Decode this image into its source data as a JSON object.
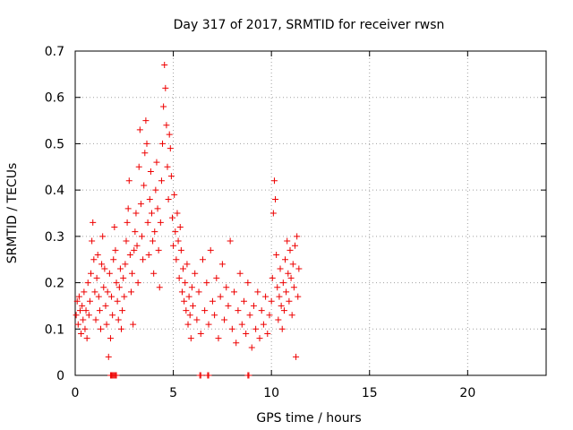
{
  "chart_data": {
    "type": "scatter",
    "title": "Day 317 of 2017, SRMTID for receiver rwsn",
    "xlabel": "GPS time / hours",
    "ylabel": "SRMTID / TECUs",
    "xlim": [
      0,
      24
    ],
    "ylim": [
      0,
      0.7
    ],
    "x_ticks": [
      0,
      5,
      10,
      15,
      20
    ],
    "y_ticks": [
      0,
      0.1,
      0.2,
      0.3,
      0.4,
      0.5,
      0.6,
      0.7
    ],
    "x_tick_labels": [
      "0",
      "5",
      "10",
      "15",
      "20"
    ],
    "y_tick_labels": [
      "0",
      "0.1",
      "0.2",
      "0.3",
      "0.4",
      "0.5",
      "0.6",
      "0.7"
    ],
    "grid": true,
    "marker": "+",
    "color": "#ee0000",
    "series": [
      {
        "name": "SRMTID",
        "points": [
          [
            0.05,
            0.13
          ],
          [
            0.1,
            0.16
          ],
          [
            0.15,
            0.11
          ],
          [
            0.2,
            0.17
          ],
          [
            0.25,
            0.14
          ],
          [
            0.3,
            0.09
          ],
          [
            0.35,
            0.15
          ],
          [
            0.4,
            0.12
          ],
          [
            0.45,
            0.18
          ],
          [
            0.5,
            0.1
          ],
          [
            0.55,
            0.14
          ],
          [
            0.6,
            0.08
          ],
          [
            0.65,
            0.2
          ],
          [
            0.7,
            0.13
          ],
          [
            0.75,
            0.16
          ],
          [
            0.8,
            0.22
          ],
          [
            0.85,
            0.29
          ],
          [
            0.9,
            0.33
          ],
          [
            0.95,
            0.25
          ],
          [
            1.0,
            0.18
          ],
          [
            1.05,
            0.12
          ],
          [
            1.1,
            0.21
          ],
          [
            1.15,
            0.26
          ],
          [
            1.2,
            0.17
          ],
          [
            1.25,
            0.14
          ],
          [
            1.3,
            0.1
          ],
          [
            1.35,
            0.24
          ],
          [
            1.4,
            0.3
          ],
          [
            1.45,
            0.19
          ],
          [
            1.5,
            0.23
          ],
          [
            1.55,
            0.15
          ],
          [
            1.6,
            0.11
          ],
          [
            1.65,
            0.18
          ],
          [
            1.7,
            0.04
          ],
          [
            1.75,
            0.22
          ],
          [
            1.8,
            0.08
          ],
          [
            1.85,
            0.17
          ],
          [
            1.9,
            0.13
          ],
          [
            1.95,
            0.25
          ],
          [
            2.0,
            0.32
          ],
          [
            2.05,
            0.27
          ],
          [
            2.1,
            0.2
          ],
          [
            2.15,
            0.16
          ],
          [
            2.2,
            0.12
          ],
          [
            2.25,
            0.19
          ],
          [
            2.3,
            0.23
          ],
          [
            2.35,
            0.1
          ],
          [
            2.4,
            0.14
          ],
          [
            2.45,
            0.21
          ],
          [
            2.5,
            0.17
          ],
          [
            2.55,
            0.24
          ],
          [
            2.6,
            0.29
          ],
          [
            2.65,
            0.33
          ],
          [
            2.7,
            0.36
          ],
          [
            2.75,
            0.42
          ],
          [
            2.8,
            0.26
          ],
          [
            2.85,
            0.18
          ],
          [
            2.9,
            0.22
          ],
          [
            2.95,
            0.11
          ],
          [
            3.0,
            0.27
          ],
          [
            3.05,
            0.31
          ],
          [
            3.1,
            0.35
          ],
          [
            3.15,
            0.28
          ],
          [
            3.2,
            0.2
          ],
          [
            3.25,
            0.45
          ],
          [
            3.3,
            0.53
          ],
          [
            3.35,
            0.37
          ],
          [
            3.4,
            0.3
          ],
          [
            3.45,
            0.25
          ],
          [
            3.5,
            0.41
          ],
          [
            3.55,
            0.48
          ],
          [
            3.6,
            0.55
          ],
          [
            3.65,
            0.5
          ],
          [
            3.7,
            0.33
          ],
          [
            3.75,
            0.26
          ],
          [
            3.8,
            0.38
          ],
          [
            3.85,
            0.44
          ],
          [
            3.9,
            0.35
          ],
          [
            3.95,
            0.29
          ],
          [
            4.0,
            0.22
          ],
          [
            4.05,
            0.31
          ],
          [
            4.1,
            0.4
          ],
          [
            4.15,
            0.46
          ],
          [
            4.2,
            0.36
          ],
          [
            4.25,
            0.27
          ],
          [
            4.3,
            0.19
          ],
          [
            4.35,
            0.33
          ],
          [
            4.4,
            0.42
          ],
          [
            4.45,
            0.5
          ],
          [
            4.5,
            0.58
          ],
          [
            4.55,
            0.67
          ],
          [
            4.6,
            0.62
          ],
          [
            4.65,
            0.54
          ],
          [
            4.7,
            0.45
          ],
          [
            4.75,
            0.38
          ],
          [
            4.8,
            0.52
          ],
          [
            4.85,
            0.49
          ],
          [
            4.9,
            0.43
          ],
          [
            4.95,
            0.34
          ],
          [
            5.0,
            0.28
          ],
          [
            5.05,
            0.39
          ],
          [
            5.1,
            0.31
          ],
          [
            5.15,
            0.25
          ],
          [
            5.2,
            0.35
          ],
          [
            5.25,
            0.29
          ],
          [
            5.3,
            0.21
          ],
          [
            5.35,
            0.32
          ],
          [
            5.4,
            0.27
          ],
          [
            5.45,
            0.18
          ],
          [
            5.5,
            0.23
          ],
          [
            5.55,
            0.16
          ],
          [
            5.6,
            0.2
          ],
          [
            5.65,
            0.14
          ],
          [
            5.7,
            0.24
          ],
          [
            5.75,
            0.11
          ],
          [
            5.8,
            0.17
          ],
          [
            5.85,
            0.13
          ],
          [
            5.9,
            0.08
          ],
          [
            5.95,
            0.19
          ],
          [
            6.0,
            0.15
          ],
          [
            6.1,
            0.22
          ],
          [
            6.2,
            0.12
          ],
          [
            6.3,
            0.18
          ],
          [
            6.4,
            0.09
          ],
          [
            6.5,
            0.25
          ],
          [
            6.6,
            0.14
          ],
          [
            6.7,
            0.2
          ],
          [
            6.8,
            0.11
          ],
          [
            6.9,
            0.27
          ],
          [
            7.0,
            0.16
          ],
          [
            7.1,
            0.13
          ],
          [
            7.2,
            0.21
          ],
          [
            7.3,
            0.08
          ],
          [
            7.4,
            0.17
          ],
          [
            7.5,
            0.24
          ],
          [
            7.6,
            0.12
          ],
          [
            7.7,
            0.19
          ],
          [
            7.8,
            0.15
          ],
          [
            7.9,
            0.29
          ],
          [
            8.0,
            0.1
          ],
          [
            8.1,
            0.18
          ],
          [
            8.2,
            0.07
          ],
          [
            8.3,
            0.14
          ],
          [
            8.4,
            0.22
          ],
          [
            8.5,
            0.11
          ],
          [
            8.6,
            0.16
          ],
          [
            8.7,
            0.09
          ],
          [
            8.8,
            0.2
          ],
          [
            8.9,
            0.13
          ],
          [
            9.0,
            0.06
          ],
          [
            9.1,
            0.15
          ],
          [
            9.2,
            0.1
          ],
          [
            9.3,
            0.18
          ],
          [
            9.4,
            0.08
          ],
          [
            9.5,
            0.14
          ],
          [
            9.6,
            0.11
          ],
          [
            9.7,
            0.17
          ],
          [
            9.8,
            0.09
          ],
          [
            9.9,
            0.13
          ],
          [
            10.0,
            0.16
          ],
          [
            10.05,
            0.21
          ],
          [
            10.1,
            0.35
          ],
          [
            10.15,
            0.42
          ],
          [
            10.2,
            0.38
          ],
          [
            10.25,
            0.26
          ],
          [
            10.3,
            0.19
          ],
          [
            10.35,
            0.12
          ],
          [
            10.4,
            0.17
          ],
          [
            10.45,
            0.23
          ],
          [
            10.5,
            0.15
          ],
          [
            10.55,
            0.1
          ],
          [
            10.6,
            0.2
          ],
          [
            10.65,
            0.14
          ],
          [
            10.7,
            0.25
          ],
          [
            10.75,
            0.18
          ],
          [
            10.8,
            0.29
          ],
          [
            10.85,
            0.22
          ],
          [
            10.9,
            0.16
          ],
          [
            10.95,
            0.27
          ],
          [
            11.0,
            0.21
          ],
          [
            11.05,
            0.13
          ],
          [
            11.1,
            0.24
          ],
          [
            11.15,
            0.19
          ],
          [
            11.2,
            0.28
          ],
          [
            11.25,
            0.04
          ],
          [
            11.3,
            0.3
          ],
          [
            11.35,
            0.17
          ],
          [
            11.4,
            0.23
          ]
        ],
        "zero_points": [
          1.8,
          1.85,
          1.9,
          1.95,
          2.0,
          2.05,
          2.1,
          6.35,
          6.4,
          6.75,
          6.8,
          8.8,
          8.85
        ]
      }
    ]
  }
}
